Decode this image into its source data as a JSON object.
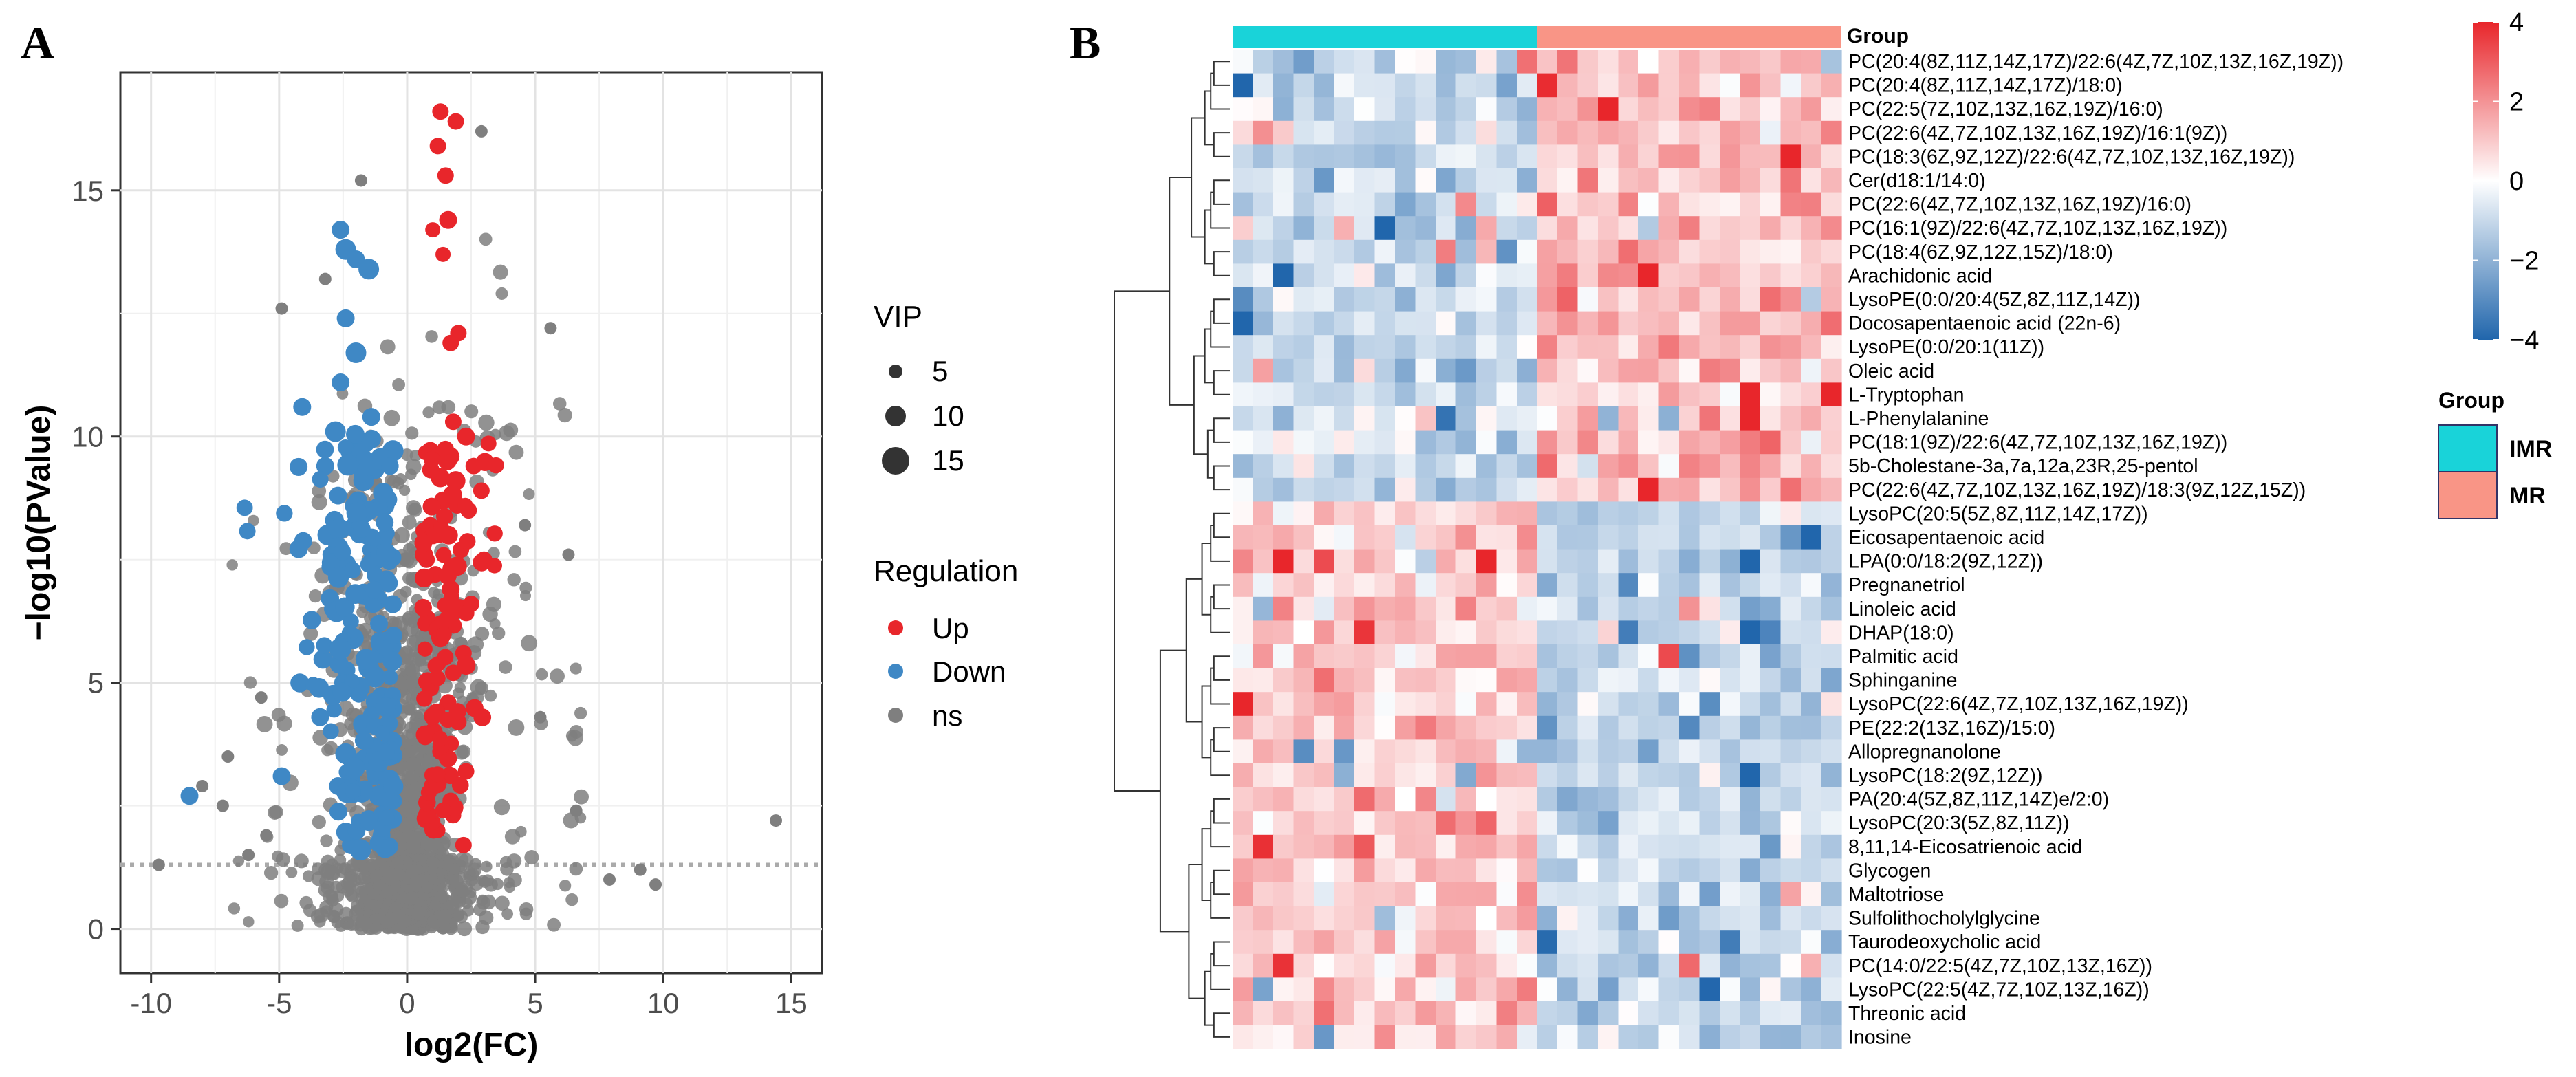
{
  "figure": {
    "panel_a_label": "A",
    "panel_b_label": "B"
  },
  "chart_data": [
    {
      "type": "scatter",
      "subtype": "volcano",
      "panel": "A",
      "xlabel": "log2(FC)",
      "ylabel": "−log10(PValue)",
      "xlim": [
        -11.2,
        16.2
      ],
      "ylim": [
        -0.9,
        17.4
      ],
      "xticks": [
        -10,
        -5,
        0,
        5,
        10,
        15
      ],
      "xtick_labels": [
        "-10",
        "-5",
        "0",
        "5",
        "10",
        "15"
      ],
      "yticks": [
        0,
        5,
        10,
        15
      ],
      "ytick_labels": [
        "0",
        "5",
        "10",
        "15"
      ],
      "threshold_y": 1.3,
      "grid": true,
      "legend": {
        "position": "right",
        "vip": {
          "title": "VIP",
          "sizes": [
            5,
            10,
            15
          ],
          "labels": [
            "5",
            "10",
            "15"
          ]
        },
        "regulation": {
          "title": "Regulation",
          "items": [
            {
              "label": "Up",
              "color": "#e8262b"
            },
            {
              "label": "Down",
              "color": "#3f88c5"
            },
            {
              "label": "ns",
              "color": "#7f7f7f"
            }
          ]
        }
      },
      "points_up": [
        [
          1.3,
          16.6,
          6
        ],
        [
          1.9,
          16.4,
          6
        ],
        [
          1.2,
          15.9,
          6
        ],
        [
          1.5,
          15.3,
          6
        ],
        [
          1.6,
          14.4,
          7
        ],
        [
          1.0,
          14.2,
          5
        ],
        [
          1.4,
          13.7,
          5
        ],
        [
          2.0,
          12.1,
          6
        ],
        [
          1.7,
          11.9,
          6
        ],
        [
          1.8,
          10.3,
          6
        ],
        [
          2.3,
          10.0,
          7
        ],
        [
          1.2,
          9.6,
          6
        ],
        [
          2.6,
          9.4,
          6
        ],
        [
          1.9,
          9.1,
          8
        ],
        [
          2.9,
          8.9,
          6
        ],
        [
          1.4,
          8.7,
          7
        ],
        [
          2.4,
          8.5,
          6
        ],
        [
          0.9,
          8.2,
          6
        ],
        [
          1.6,
          8.0,
          6
        ],
        [
          2.1,
          7.7,
          6
        ],
        [
          3.0,
          7.5,
          6
        ],
        [
          1.1,
          7.2,
          6
        ],
        [
          1.7,
          6.9,
          7
        ],
        [
          2.5,
          6.6,
          6
        ],
        [
          0.8,
          6.3,
          6
        ],
        [
          1.3,
          5.9,
          7
        ],
        [
          2.2,
          5.6,
          6
        ],
        [
          1.8,
          5.2,
          6
        ],
        [
          0.9,
          4.9,
          7
        ],
        [
          1.6,
          4.6,
          6
        ],
        [
          2.0,
          4.2,
          6
        ],
        [
          0.7,
          3.9,
          6
        ],
        [
          1.3,
          3.6,
          6
        ],
        [
          2.3,
          3.2,
          6
        ],
        [
          1.0,
          2.9,
          7
        ],
        [
          1.7,
          2.6,
          6
        ],
        [
          0.8,
          2.3,
          6
        ],
        [
          2.2,
          1.7,
          6
        ],
        [
          1.2,
          2.0,
          5
        ]
      ],
      "points_down": [
        [
          -2.6,
          14.2,
          7
        ],
        [
          -2.4,
          13.8,
          9
        ],
        [
          -2.0,
          13.6,
          7
        ],
        [
          -1.5,
          13.4,
          9
        ],
        [
          -2.4,
          12.4,
          7
        ],
        [
          -2.0,
          11.7,
          9
        ],
        [
          -2.6,
          11.1,
          7
        ],
        [
          -4.1,
          10.6,
          7
        ],
        [
          -2.8,
          10.1,
          9
        ],
        [
          -1.4,
          10.4,
          7
        ],
        [
          -2.2,
          9.7,
          9
        ],
        [
          -3.2,
          9.4,
          7
        ],
        [
          -1.7,
          9.1,
          9
        ],
        [
          -2.7,
          8.8,
          7
        ],
        [
          -0.9,
          8.6,
          9
        ],
        [
          -1.9,
          8.3,
          7
        ],
        [
          -3.1,
          8.0,
          9
        ],
        [
          -1.4,
          7.7,
          7
        ],
        [
          -2.4,
          7.4,
          9
        ],
        [
          -0.8,
          7.1,
          7
        ],
        [
          -1.7,
          6.8,
          9
        ],
        [
          -2.9,
          6.5,
          7
        ],
        [
          -1.1,
          6.2,
          7
        ],
        [
          -2.1,
          5.9,
          9
        ],
        [
          -0.7,
          5.6,
          7
        ],
        [
          -1.5,
          5.3,
          9
        ],
        [
          -2.5,
          5.0,
          7
        ],
        [
          -1.0,
          4.7,
          9
        ],
        [
          -3.4,
          4.3,
          7
        ],
        [
          -1.7,
          4.1,
          7
        ],
        [
          -0.6,
          3.8,
          9
        ],
        [
          -2.3,
          3.5,
          7
        ],
        [
          -1.2,
          3.2,
          9
        ],
        [
          -2.7,
          2.9,
          7
        ],
        [
          -0.8,
          2.6,
          7
        ],
        [
          -4.9,
          3.1,
          7
        ],
        [
          -8.5,
          2.7,
          7
        ],
        [
          -1.5,
          2.2,
          9
        ],
        [
          -2.2,
          1.7,
          7
        ],
        [
          -1.0,
          1.9,
          7
        ]
      ]
    },
    {
      "type": "heatmap",
      "panel": "B",
      "color_scale": {
        "min": -4,
        "max": 4,
        "ticks": [
          4,
          2,
          0,
          -2,
          -4
        ],
        "tick_labels": [
          "4",
          "2",
          "0",
          "−2",
          "−4"
        ],
        "low": "#2166ac",
        "mid": "#ffffff",
        "high": "#e8262b"
      },
      "group_annotation": {
        "title": "Group",
        "groups": [
          {
            "label": "IMR",
            "color": "#19d3d9",
            "n_columns": 15
          },
          {
            "label": "MR",
            "color": "#f99586",
            "n_columns": 15
          }
        ]
      },
      "n_columns": 30,
      "rows": [
        {
          "label": "PC(20:4(8Z,11Z,14Z,17Z)/22:6(4Z,7Z,10Z,13Z,16Z,19Z))",
          "pattern": 1
        },
        {
          "label": "PC(20:4(8Z,11Z,14Z,17Z)/18:0)",
          "pattern": 1
        },
        {
          "label": "PC(22:5(7Z,10Z,13Z,16Z,19Z)/16:0)",
          "pattern": 1
        },
        {
          "label": "PC(22:6(4Z,7Z,10Z,13Z,16Z,19Z)/16:1(9Z))",
          "pattern": 1
        },
        {
          "label": "PC(18:3(6Z,9Z,12Z)/22:6(4Z,7Z,10Z,13Z,16Z,19Z))",
          "pattern": 1
        },
        {
          "label": "Cer(d18:1/14:0)",
          "pattern": 1
        },
        {
          "label": "PC(22:6(4Z,7Z,10Z,13Z,16Z,19Z)/16:0)",
          "pattern": 1
        },
        {
          "label": "PC(16:1(9Z)/22:6(4Z,7Z,10Z,13Z,16Z,19Z))",
          "pattern": 1
        },
        {
          "label": "PC(18:4(6Z,9Z,12Z,15Z)/18:0)",
          "pattern": 1
        },
        {
          "label": "Arachidonic acid",
          "pattern": 1
        },
        {
          "label": "LysoPE(0:0/20:4(5Z,8Z,11Z,14Z))",
          "pattern": 1
        },
        {
          "label": "Docosapentaenoic acid (22n-6)",
          "pattern": 1
        },
        {
          "label": "LysoPE(0:0/20:1(11Z))",
          "pattern": 1
        },
        {
          "label": "Oleic acid",
          "pattern": 1
        },
        {
          "label": "L-Tryptophan",
          "pattern": 1
        },
        {
          "label": "L-Phenylalanine",
          "pattern": 1
        },
        {
          "label": "PC(18:1(9Z)/22:6(4Z,7Z,10Z,13Z,16Z,19Z))",
          "pattern": 1
        },
        {
          "label": "5b-Cholestane-3a,7a,12a,23R,25-pentol",
          "pattern": 1
        },
        {
          "label": "PC(22:6(4Z,7Z,10Z,13Z,16Z,19Z)/18:3(9Z,12Z,15Z))",
          "pattern": 1
        },
        {
          "label": "LysoPC(20:5(5Z,8Z,11Z,14Z,17Z))",
          "pattern": -1
        },
        {
          "label": "Eicosapentaenoic acid",
          "pattern": -1
        },
        {
          "label": "LPA(0:0/18:2(9Z,12Z))",
          "pattern": -1
        },
        {
          "label": "Pregnanetriol",
          "pattern": -1
        },
        {
          "label": "Linoleic acid",
          "pattern": -1
        },
        {
          "label": "DHAP(18:0)",
          "pattern": -1
        },
        {
          "label": "Palmitic acid",
          "pattern": -1
        },
        {
          "label": "Sphinganine",
          "pattern": -1
        },
        {
          "label": "LysoPC(22:6(4Z,7Z,10Z,13Z,16Z,19Z))",
          "pattern": -1
        },
        {
          "label": "PE(22:2(13Z,16Z)/15:0)",
          "pattern": -1
        },
        {
          "label": "Allopregnanolone",
          "pattern": -1
        },
        {
          "label": "LysoPC(18:2(9Z,12Z))",
          "pattern": -1
        },
        {
          "label": "PA(20:4(5Z,8Z,11Z,14Z)e/2:0)",
          "pattern": -1
        },
        {
          "label": "LysoPC(20:3(5Z,8Z,11Z))",
          "pattern": -1
        },
        {
          "label": "8,11,14-Eicosatrienoic acid",
          "pattern": -1
        },
        {
          "label": "Glycogen",
          "pattern": -1
        },
        {
          "label": "Maltotriose",
          "pattern": -1
        },
        {
          "label": "Sulfolithocholylglycine",
          "pattern": -1
        },
        {
          "label": "Taurodeoxycholic acid",
          "pattern": -1
        },
        {
          "label": "PC(14:0/22:5(4Z,7Z,10Z,13Z,16Z))",
          "pattern": -1
        },
        {
          "label": "LysoPC(22:5(4Z,7Z,10Z,13Z,16Z))",
          "pattern": -1
        },
        {
          "label": "Threonic acid",
          "pattern": -1
        },
        {
          "label": "Inosine",
          "pattern": -1
        }
      ]
    }
  ]
}
